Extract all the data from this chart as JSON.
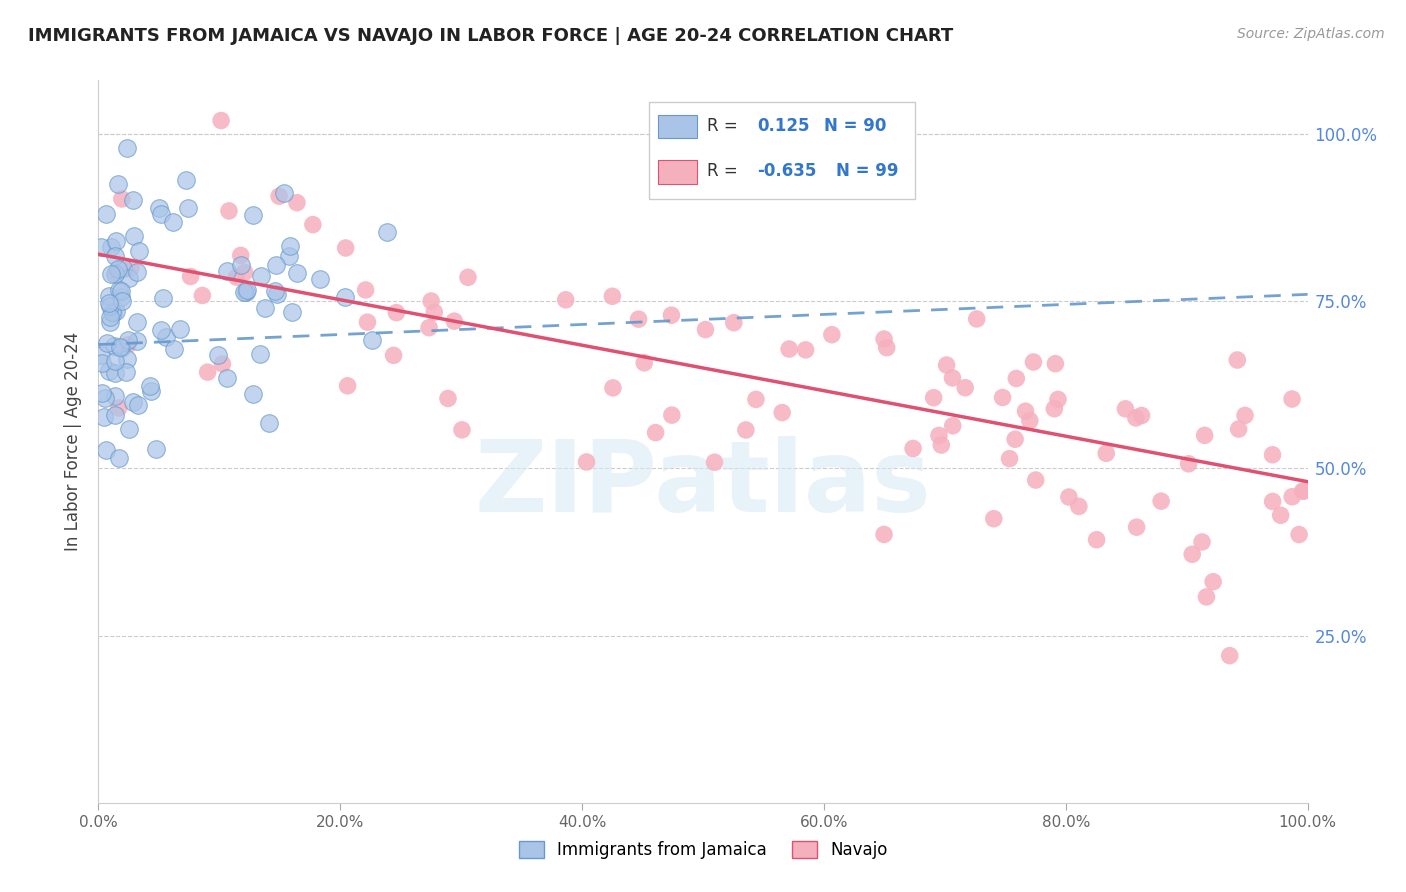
{
  "title": "IMMIGRANTS FROM JAMAICA VS NAVAJO IN LABOR FORCE | AGE 20-24 CORRELATION CHART",
  "source_text": "Source: ZipAtlas.com",
  "ylabel": "In Labor Force | Age 20-24",
  "xlim": [
    0.0,
    1.0
  ],
  "ylim": [
    0.0,
    1.08
  ],
  "x_tick_labels": [
    "0.0%",
    "20.0%",
    "40.0%",
    "60.0%",
    "80.0%",
    "100.0%"
  ],
  "x_tick_vals": [
    0.0,
    0.2,
    0.4,
    0.6,
    0.8,
    1.0
  ],
  "y_tick_labels": [
    "25.0%",
    "50.0%",
    "75.0%",
    "100.0%"
  ],
  "y_tick_vals": [
    0.25,
    0.5,
    0.75,
    1.0
  ],
  "watermark": "ZIPatlas",
  "legend_r_jamaica": "0.125",
  "legend_n_jamaica": "90",
  "legend_r_navajo": "-0.635",
  "legend_n_navajo": "99",
  "color_jamaica": "#aac4e8",
  "color_navajo": "#f5b0be",
  "trendline_jamaica_color": "#6699cc",
  "trendline_navajo_color": "#e05070",
  "background_color": "#ffffff",
  "grid_color": "#cccccc",
  "jamaica_trendline_start_y": 0.685,
  "jamaica_trendline_end_y": 0.76,
  "navajo_trendline_start_y": 0.82,
  "navajo_trendline_end_y": 0.48
}
